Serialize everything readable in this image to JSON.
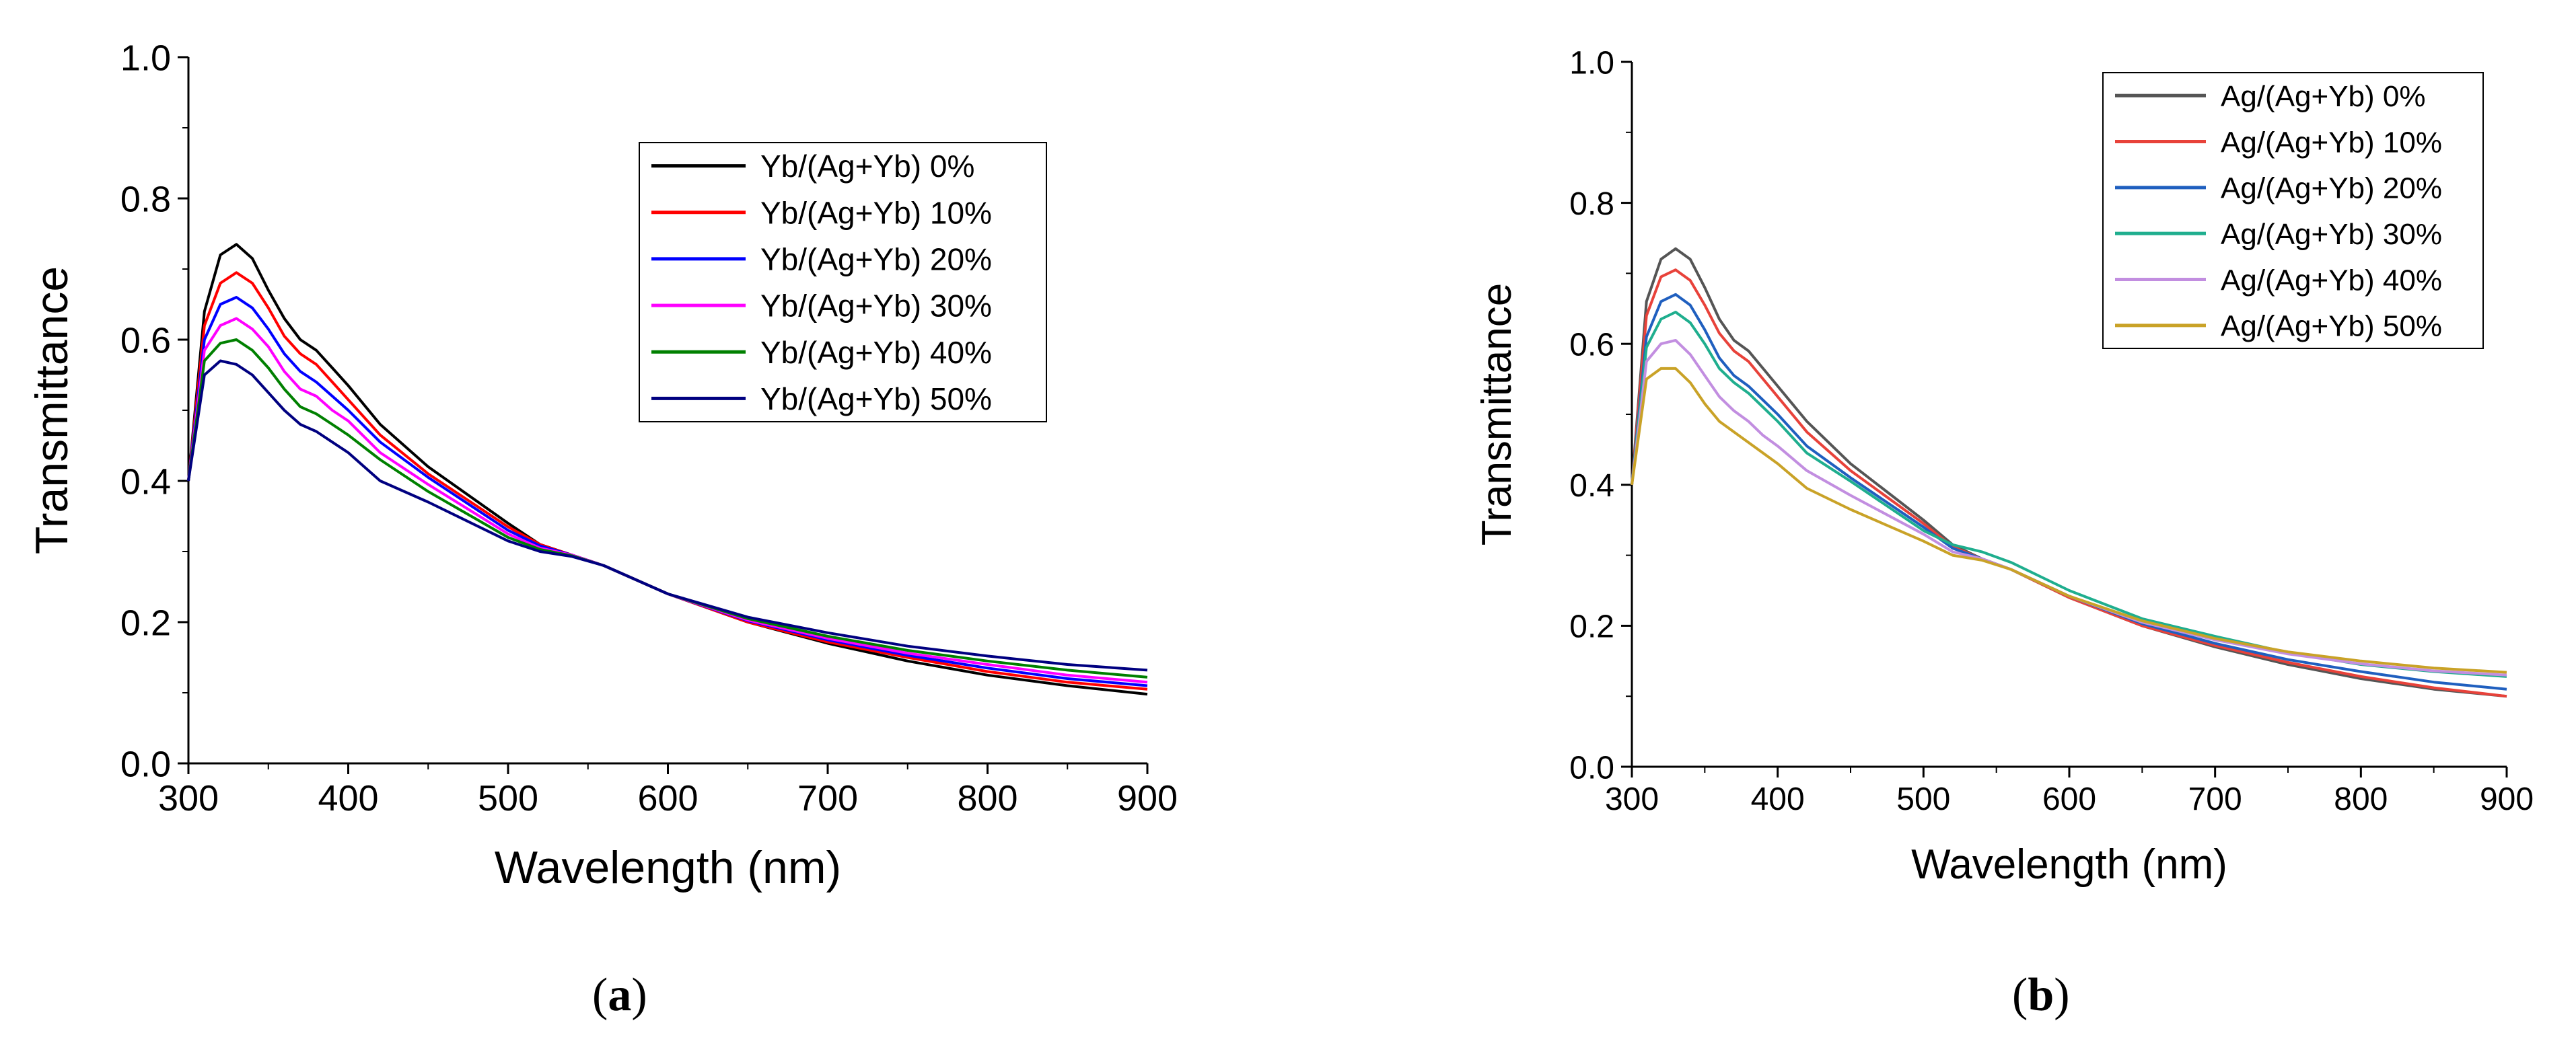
{
  "chart_data": [
    {
      "type": "line",
      "panel": "(a)",
      "panel_letter": "a",
      "title": "",
      "xlabel": "Wavelength (nm)",
      "ylabel": "Transmittance",
      "xlim": [
        300,
        900
      ],
      "ylim": [
        0.0,
        1.0
      ],
      "xticks": [
        300,
        400,
        500,
        600,
        700,
        800,
        900
      ],
      "yticks": [
        "0.0",
        "0.2",
        "0.4",
        "0.6",
        "0.8",
        "1.0"
      ],
      "grid": false,
      "legend_position": "top-right",
      "x": [
        300,
        310,
        320,
        330,
        340,
        350,
        360,
        370,
        380,
        390,
        400,
        420,
        450,
        500,
        520,
        540,
        560,
        600,
        650,
        700,
        750,
        800,
        850,
        900
      ],
      "series": [
        {
          "name": "Yb/(Ag+Yb) 0%",
          "color": "#000000",
          "values": [
            0.4,
            0.64,
            0.72,
            0.735,
            0.715,
            0.67,
            0.63,
            0.6,
            0.585,
            0.56,
            0.535,
            0.48,
            0.42,
            0.34,
            0.31,
            0.295,
            0.28,
            0.24,
            0.2,
            0.17,
            0.145,
            0.125,
            0.11,
            0.098
          ]
        },
        {
          "name": "Yb/(Ag+Yb) 10%",
          "color": "#ff0000",
          "values": [
            0.4,
            0.62,
            0.68,
            0.695,
            0.68,
            0.645,
            0.605,
            0.58,
            0.565,
            0.54,
            0.515,
            0.465,
            0.41,
            0.335,
            0.31,
            0.295,
            0.28,
            0.24,
            0.2,
            0.172,
            0.15,
            0.13,
            0.115,
            0.105
          ]
        },
        {
          "name": "Yb/(Ag+Yb) 20%",
          "color": "#0000ff",
          "values": [
            0.4,
            0.6,
            0.65,
            0.66,
            0.645,
            0.615,
            0.58,
            0.555,
            0.54,
            0.52,
            0.5,
            0.455,
            0.405,
            0.33,
            0.308,
            0.295,
            0.28,
            0.24,
            0.202,
            0.175,
            0.153,
            0.135,
            0.12,
            0.11
          ]
        },
        {
          "name": "Yb/(Ag+Yb) 30%",
          "color": "#ff00ff",
          "values": [
            0.4,
            0.585,
            0.62,
            0.63,
            0.615,
            0.59,
            0.555,
            0.53,
            0.52,
            0.5,
            0.485,
            0.44,
            0.395,
            0.325,
            0.305,
            0.295,
            0.28,
            0.24,
            0.203,
            0.177,
            0.156,
            0.14,
            0.125,
            0.115
          ]
        },
        {
          "name": "Yb/(Ag+Yb) 40%",
          "color": "#008000",
          "values": [
            0.4,
            0.57,
            0.595,
            0.6,
            0.585,
            0.56,
            0.53,
            0.505,
            0.495,
            0.48,
            0.465,
            0.43,
            0.385,
            0.32,
            0.303,
            0.294,
            0.28,
            0.24,
            0.205,
            0.18,
            0.16,
            0.145,
            0.132,
            0.122
          ]
        },
        {
          "name": "Yb/(Ag+Yb) 50%",
          "color": "#000080",
          "values": [
            0.4,
            0.55,
            0.57,
            0.565,
            0.55,
            0.525,
            0.5,
            0.48,
            0.47,
            0.455,
            0.44,
            0.4,
            0.37,
            0.315,
            0.3,
            0.293,
            0.28,
            0.24,
            0.207,
            0.185,
            0.166,
            0.152,
            0.14,
            0.132
          ]
        }
      ]
    },
    {
      "type": "line",
      "panel": "(b)",
      "panel_letter": "b",
      "title": "",
      "xlabel": "Wavelength (nm)",
      "ylabel": "Transmittance",
      "xlim": [
        300,
        900
      ],
      "ylim": [
        0.0,
        1.0
      ],
      "xticks": [
        300,
        400,
        500,
        600,
        700,
        800,
        900
      ],
      "yticks": [
        "0.0",
        "0.2",
        "0.4",
        "0.6",
        "0.8",
        "1.0"
      ],
      "grid": false,
      "legend_position": "top-right",
      "x": [
        300,
        310,
        320,
        330,
        340,
        350,
        360,
        370,
        380,
        390,
        400,
        420,
        450,
        500,
        520,
        540,
        560,
        600,
        650,
        700,
        750,
        800,
        850,
        900
      ],
      "series": [
        {
          "name": "Ag/(Ag+Yb) 0%",
          "color": "#555555",
          "values": [
            0.4,
            0.66,
            0.72,
            0.735,
            0.72,
            0.68,
            0.635,
            0.605,
            0.59,
            0.565,
            0.54,
            0.49,
            0.43,
            0.35,
            0.315,
            0.295,
            0.28,
            0.24,
            0.2,
            0.17,
            0.145,
            0.125,
            0.11,
            0.1
          ]
        },
        {
          "name": "Ag/(Ag+Yb) 10%",
          "color": "#e8423a",
          "values": [
            0.4,
            0.64,
            0.695,
            0.705,
            0.69,
            0.655,
            0.615,
            0.59,
            0.575,
            0.55,
            0.525,
            0.475,
            0.42,
            0.345,
            0.312,
            0.295,
            0.28,
            0.24,
            0.2,
            0.172,
            0.148,
            0.128,
            0.112,
            0.1
          ]
        },
        {
          "name": "Ag/(Ag+Yb) 20%",
          "color": "#1f5fbf",
          "values": [
            0.4,
            0.61,
            0.66,
            0.67,
            0.655,
            0.62,
            0.58,
            0.555,
            0.54,
            0.52,
            0.5,
            0.455,
            0.41,
            0.34,
            0.31,
            0.295,
            0.28,
            0.242,
            0.203,
            0.175,
            0.152,
            0.135,
            0.12,
            0.11
          ]
        },
        {
          "name": "Ag/(Ag+Yb) 30%",
          "color": "#1fae8e",
          "values": [
            0.4,
            0.595,
            0.635,
            0.645,
            0.63,
            0.6,
            0.565,
            0.545,
            0.53,
            0.51,
            0.49,
            0.445,
            0.405,
            0.335,
            0.315,
            0.305,
            0.29,
            0.25,
            0.21,
            0.185,
            0.162,
            0.145,
            0.135,
            0.128
          ]
        },
        {
          "name": "Ag/(Ag+Yb) 40%",
          "color": "#c28ee0",
          "values": [
            0.4,
            0.575,
            0.6,
            0.605,
            0.585,
            0.555,
            0.525,
            0.505,
            0.49,
            0.47,
            0.455,
            0.42,
            0.385,
            0.33,
            0.305,
            0.295,
            0.28,
            0.242,
            0.205,
            0.18,
            0.16,
            0.146,
            0.136,
            0.13
          ]
        },
        {
          "name": "Ag/(Ag+Yb) 50%",
          "color": "#c9a227",
          "values": [
            0.4,
            0.55,
            0.565,
            0.565,
            0.545,
            0.515,
            0.49,
            0.475,
            0.46,
            0.445,
            0.43,
            0.395,
            0.365,
            0.32,
            0.3,
            0.293,
            0.28,
            0.242,
            0.207,
            0.182,
            0.163,
            0.15,
            0.14,
            0.134
          ]
        }
      ]
    }
  ]
}
